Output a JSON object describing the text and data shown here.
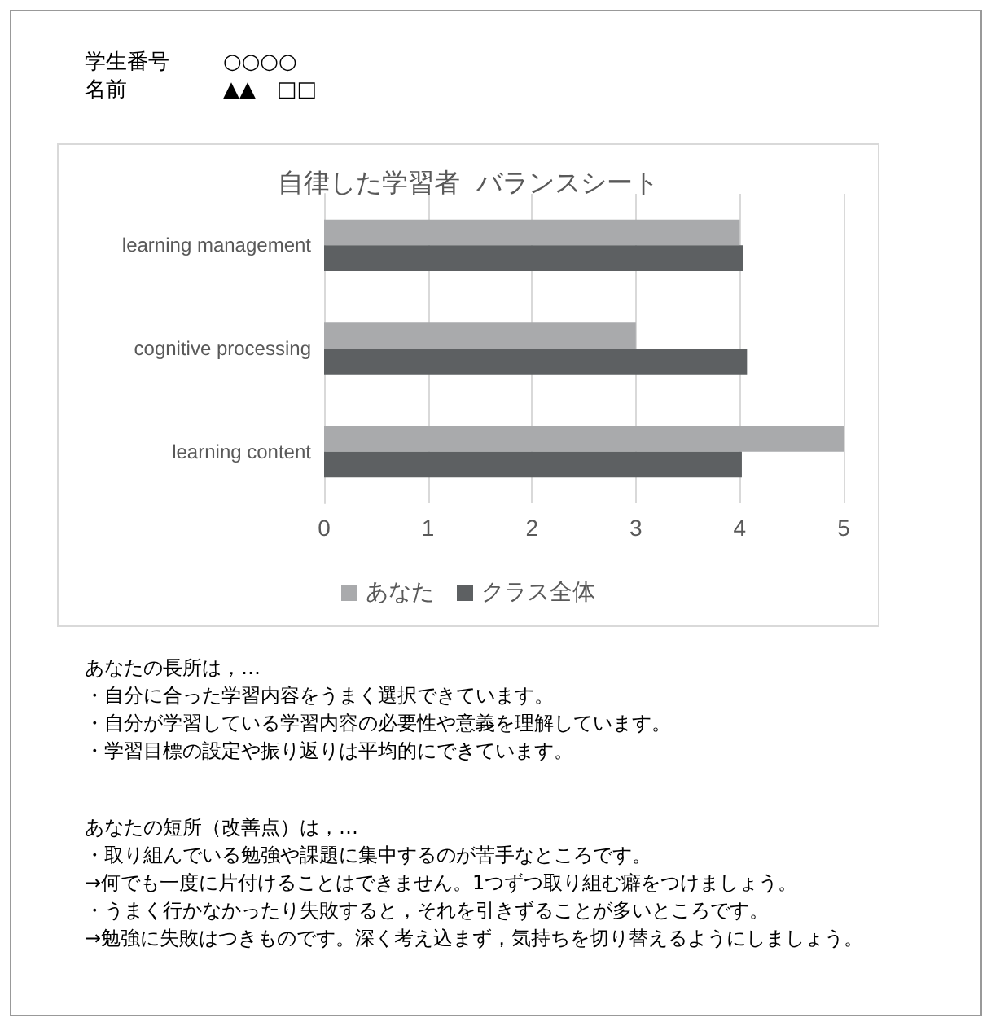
{
  "chart_data": {
    "type": "bar",
    "orientation": "horizontal",
    "title": "自律した学習者  バランスシート",
    "categories": [
      "learning management",
      "cognitive processing",
      "learning content"
    ],
    "series": [
      {
        "name": "あなた",
        "color": "#a9aaac",
        "values": [
          4,
          3,
          5
        ]
      },
      {
        "name": "クラス全体",
        "color": "#5d6062",
        "values": [
          4.03,
          4.07,
          4.02
        ]
      }
    ],
    "xlim": [
      0,
      5
    ],
    "xticks": [
      0,
      1,
      2,
      3,
      4,
      5
    ],
    "grid": "x",
    "legend": "bottom",
    "annotations": [
      "学生番号",
      "○○○○",
      "名前",
      "▲▲　□□",
      "あなたの長所は，…",
      "・自分に合った学習内容をうまく選択できています。",
      "・自分が学習している学習内容の必要性や意義を理解しています。",
      "・学習目標の設定や振り返りは平均的にできています。",
      "あなたの短所（改善点）は，…",
      "・取り組んでいる勉強や課題に集中するのが苦手なところです。",
      "→何でも一度に片付けることはできません。1つずつ取り組む癖をつけましょう。",
      "・うまく行かなかったり失敗すると，それを引きずることが多いところです。",
      "→勉強に失敗はつきものです。深く考え込まず，気持ちを切り替えるようにしましょう。"
    ]
  }
}
